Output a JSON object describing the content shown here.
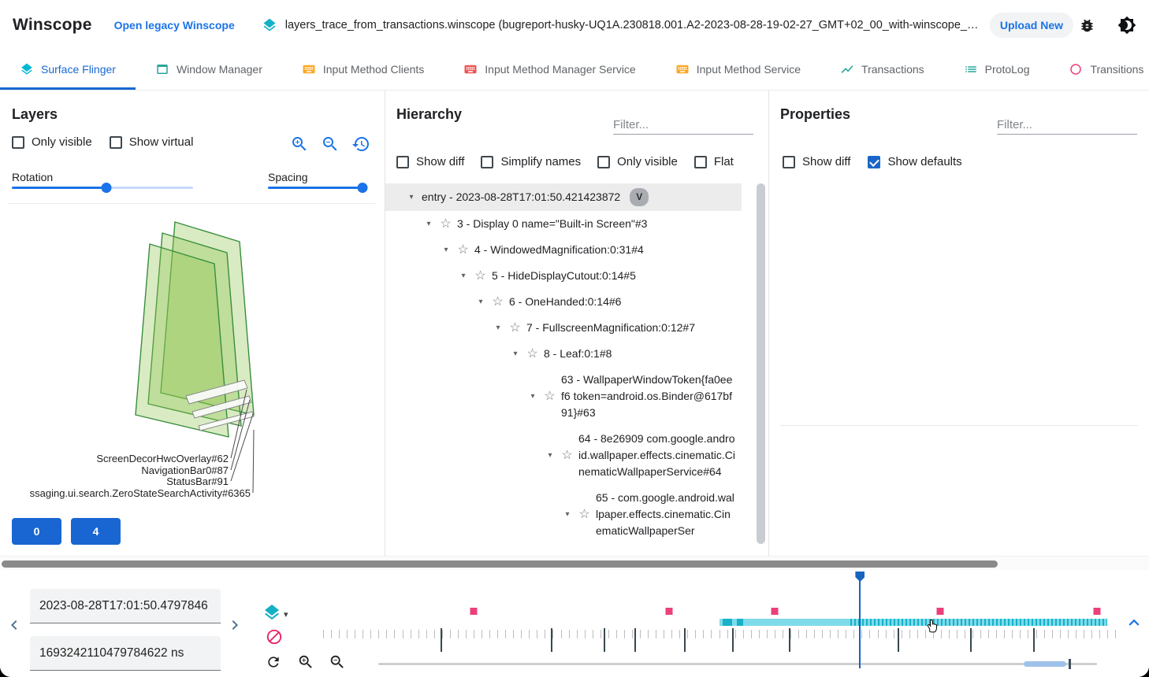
{
  "header": {
    "app_title": "Winscope",
    "legacy_link": "Open legacy Winscope",
    "trace_file": "layers_trace_from_transactions.winscope (bugreport-husky-UQ1A.230818.001.A2-2023-08-28-19-02-27_GMT+02_00_with-winscope_REDACTED.zip)",
    "upload_button": "Upload New",
    "icons": [
      "layers-icon",
      "bug-report-icon",
      "dark-mode-icon"
    ]
  },
  "tabs": [
    {
      "label": "Surface Flinger",
      "icon": "layers-icon",
      "active": true
    },
    {
      "label": "Window Manager",
      "icon": "window-icon",
      "active": false
    },
    {
      "label": "Input Method Clients",
      "icon": "keyboard-icon",
      "active": false
    },
    {
      "label": "Input Method Manager Service",
      "icon": "keyboard-icon",
      "active": false
    },
    {
      "label": "Input Method Service",
      "icon": "keyboard-icon",
      "active": false
    },
    {
      "label": "Transactions",
      "icon": "chart-icon",
      "active": false
    },
    {
      "label": "ProtoLog",
      "icon": "list-icon",
      "active": false
    },
    {
      "label": "Transitions",
      "icon": "transition-icon",
      "active": false
    }
  ],
  "layers_panel": {
    "title": "Layers",
    "checkboxes": [
      {
        "label": "Only visible",
        "checked": false
      },
      {
        "label": "Show virtual",
        "checked": false
      }
    ],
    "controls": [
      "zoom-in-icon",
      "zoom-out-icon",
      "reset-view-icon"
    ],
    "rotation_label": "Rotation",
    "rotation_value_pct": 52,
    "spacing_label": "Spacing",
    "spacing_value_pct": 95,
    "layer_labels": [
      "ScreenDecorHwcOverlay#62",
      "NavigationBar0#87",
      "StatusBar#91",
      "ssaging.ui.search.ZeroStateSearchActivity#6365"
    ],
    "buttons": [
      "0",
      "4"
    ],
    "layer_fill_color": "#8bc34a"
  },
  "hierarchy_panel": {
    "title": "Hierarchy",
    "filter_placeholder": "Filter...",
    "checkboxes": [
      {
        "label": "Show diff",
        "checked": false
      },
      {
        "label": "Simplify names",
        "checked": false
      },
      {
        "label": "Only visible",
        "checked": false
      },
      {
        "label": "Flat",
        "checked": false
      }
    ],
    "tree": [
      {
        "level": 0,
        "text": "entry - 2023-08-28T17:01:50.421423872",
        "star": false,
        "chip": "V",
        "selected": true
      },
      {
        "level": 1,
        "text": "3 - Display 0 name=\"Built-in Screen\"#3",
        "star": true
      },
      {
        "level": 2,
        "text": "4 - WindowedMagnification:0:31#4",
        "star": true
      },
      {
        "level": 3,
        "text": "5 - HideDisplayCutout:0:14#5",
        "star": true
      },
      {
        "level": 4,
        "text": "6 - OneHanded:0:14#6",
        "star": true
      },
      {
        "level": 5,
        "text": "7 - FullscreenMagnification:0:12#7",
        "star": true
      },
      {
        "level": 6,
        "text": "8 - Leaf:0:1#8",
        "star": true
      },
      {
        "level": 7,
        "text": "63 - WallpaperWindowToken{fa0eef6 token=android.os.Binder@617bf91}#63",
        "star": true
      },
      {
        "level": 8,
        "text": "64 - 8e26909 com.google.android.wallpaper.effects.cinematic.CinematicWallpaperService#64",
        "star": true
      },
      {
        "level": 9,
        "text": "65 - com.google.android.wallpaper.effects.cinematic.CinematicWallpaperSer",
        "star": true
      }
    ]
  },
  "properties_panel": {
    "title": "Properties",
    "filter_placeholder": "Filter...",
    "checkboxes": [
      {
        "label": "Show diff",
        "checked": false
      },
      {
        "label": "Show defaults",
        "checked": true
      }
    ]
  },
  "timeline": {
    "timestamp_human": "2023-08-28T17:01:50.4797846",
    "timestamp_ns": "1693242110479784622 ns",
    "trace_icons": [
      "layers-icon",
      "block-icon"
    ],
    "controls": [
      "refresh-icon",
      "zoom-in-icon",
      "zoom-out-icon"
    ],
    "cursor_pct": 67.7,
    "event_markers_pct": [
      19.0,
      43.7,
      57.0,
      77.9,
      97.7
    ],
    "major_ticks_pct": [
      14.9,
      28.9,
      35.5,
      39.4,
      45.7,
      51.7,
      58.9,
      72.6,
      81.8,
      89.8
    ],
    "teal_band": {
      "start_pct": 50.0,
      "end_pct": 99.0,
      "striped_start_pct": 66.6,
      "solid_segments_pct": [
        [
          50.4,
          1.2
        ],
        [
          52.2,
          0.8
        ]
      ]
    },
    "range_slider": {
      "highlight_start_pct": 89.8,
      "highlight_end_pct": 95.7,
      "handle_pct": 96.1
    },
    "colors": {
      "accent": "#1a73e8",
      "event_marker": "#ec407a",
      "band_light": "#7fdbea",
      "band_dark": "#17b2c9"
    }
  }
}
